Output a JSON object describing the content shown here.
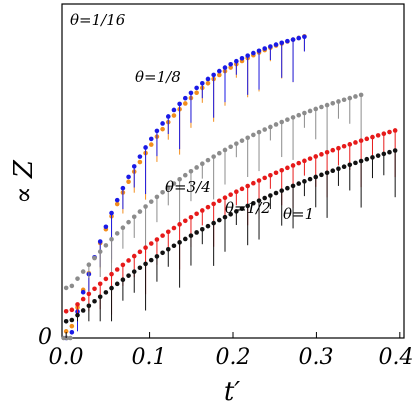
{
  "chart_data": {
    "type": "scatter",
    "title": "",
    "xlabel": "t′",
    "ylabel": "∝ Z",
    "xlim": [
      -0.005,
      0.405
    ],
    "ylim": [
      0,
      1.0
    ],
    "x_ticks": [
      0.0,
      0.1,
      0.2,
      0.3,
      0.4
    ],
    "x_tick_labels": [
      "0.0",
      "0.1",
      "0.2",
      "0.3",
      "0.4"
    ],
    "y_ticks": [
      0
    ],
    "y_tick_labels": [
      "0"
    ],
    "grid": false,
    "legend": "none",
    "series": [
      {
        "name": "θ=1/16",
        "color": "#f28e1c",
        "start": 0.02,
        "end": 0.98,
        "rate": 9,
        "low_limit": 0.05,
        "jump_x": 0.02
      },
      {
        "name": "θ=1/8",
        "color": "#1a1ae6",
        "start": 0.0,
        "end": 0.96,
        "rate": 10,
        "low_limit": 0.02,
        "jump_x": 0.01
      },
      {
        "name": "θ=3/4",
        "color": "#8c8c8c",
        "start": 0.15,
        "end": 0.88,
        "rate": 4.5,
        "low_limit": 0.18,
        "jump_x": 0.012
      },
      {
        "name": "θ=1/2",
        "color": "#e61a1a",
        "start": 0.08,
        "end": 0.84,
        "rate": 3.2,
        "low_limit": 0.07,
        "jump_x": 0.015
      },
      {
        "name": "θ=1",
        "color": "#111111",
        "start": 0.05,
        "end": 0.82,
        "rate": 2.8,
        "low_limit": 0.05,
        "jump_x": 0.12
      }
    ]
  }
}
